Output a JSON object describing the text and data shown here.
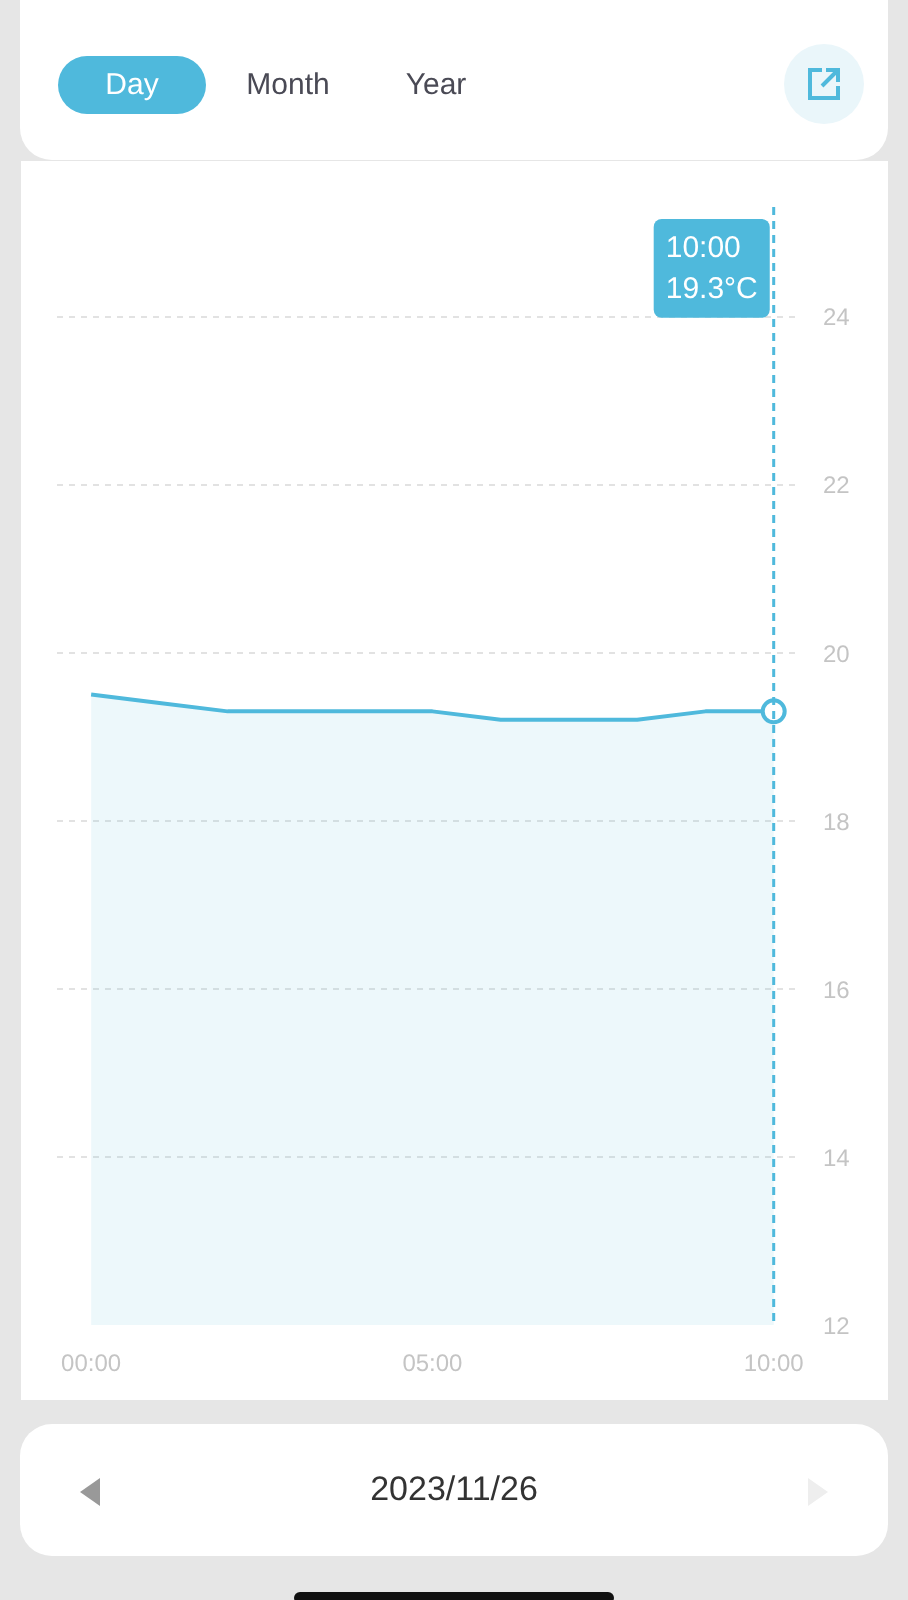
{
  "chart_data": {
    "type": "area",
    "title": "2023/11/26",
    "annotations": [
      "Day",
      "Month",
      "Year"
    ],
    "x": [
      0,
      1,
      2,
      3,
      4,
      5,
      6,
      7,
      8,
      9,
      10
    ],
    "series": [
      {
        "color": "#4fb9dc",
        "values": [
          19.5,
          19.4,
          19.3,
          19.3,
          19.3,
          19.3,
          19.2,
          19.2,
          19.2,
          19.3,
          19.3
        ]
      }
    ],
    "xlim": [
      -0.5,
      10.4
    ],
    "ylim": [
      12,
      25.3
    ],
    "xticks": [
      {
        "value": 0,
        "label": "00:00"
      },
      {
        "value": 5,
        "label": "05:00"
      },
      {
        "value": 10,
        "label": "10:00"
      }
    ],
    "yticks": [
      12,
      14,
      16,
      18,
      20,
      22,
      24
    ],
    "ref_lines": [
      {
        "axis": "x",
        "value": 10,
        "label": "10:00\n19.3°C",
        "color": "#4fb9dc",
        "line_style": "dashed"
      }
    ],
    "grid": "y"
  }
}
